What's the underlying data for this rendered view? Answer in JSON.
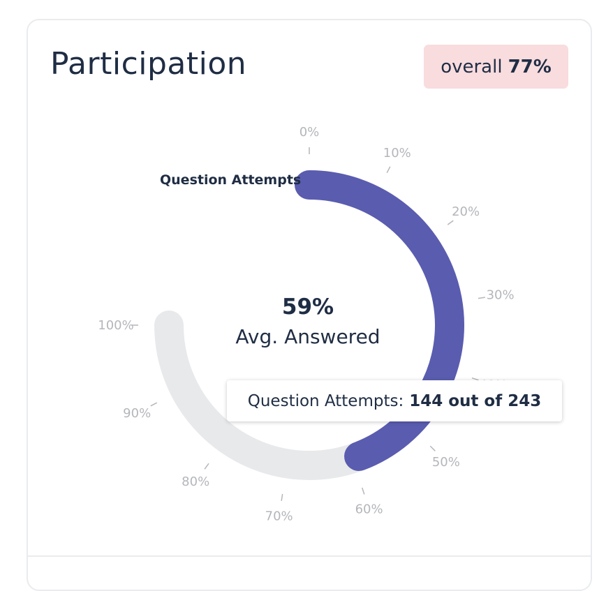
{
  "card": {
    "title": "Participation",
    "overall_label": "overall",
    "overall_value": "77%"
  },
  "chart_data": {
    "type": "radial-progress",
    "series": [
      {
        "name": "Question Attempts",
        "value": 59,
        "color": "#5a5caf"
      }
    ],
    "track_color": "#e8e9eb",
    "scale_max": 100,
    "ticks": [
      "0%",
      "10%",
      "20%",
      "30%",
      "40%",
      "50%",
      "60%",
      "70%",
      "80%",
      "90%",
      "100%"
    ],
    "center_value": "59%",
    "center_label": "Avg. Answered",
    "tooltip": {
      "label": "Question Attempts:",
      "value": "144 out of 243"
    }
  }
}
